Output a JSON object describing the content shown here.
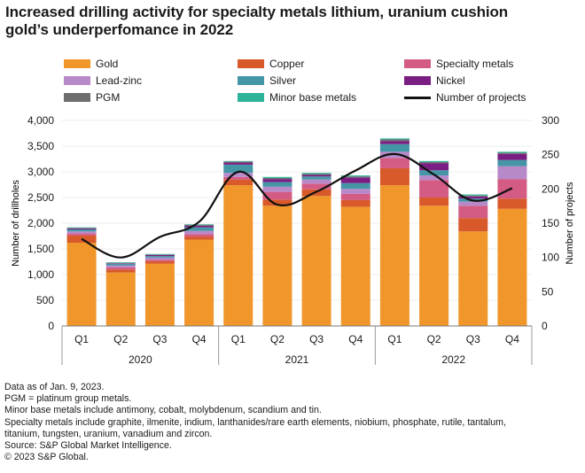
{
  "title": {
    "line1": "Increased drilling activity for specialty metals lithium, uranium cushion",
    "line2": "gold’s underperfomance in 2022"
  },
  "legend": [
    {
      "name": "Gold",
      "color": "#F0962A",
      "kind": "box"
    },
    {
      "name": "Copper",
      "color": "#D8592A",
      "kind": "box"
    },
    {
      "name": "Specialty metals",
      "color": "#D35B84",
      "kind": "box"
    },
    {
      "name": "Lead-zinc",
      "color": "#B889C9",
      "kind": "box"
    },
    {
      "name": "Silver",
      "color": "#4496A7",
      "kind": "box"
    },
    {
      "name": "Nickel",
      "color": "#7B1E83",
      "kind": "box"
    },
    {
      "name": "PGM",
      "color": "#6E6E6E",
      "kind": "box"
    },
    {
      "name": "Minor base metals",
      "color": "#2DB39A",
      "kind": "box"
    },
    {
      "name": "Number of projects",
      "color": "#111111",
      "kind": "line"
    }
  ],
  "chart_data": {
    "type": "bar",
    "stacked": true,
    "categories": [
      "Q1",
      "Q2",
      "Q3",
      "Q4",
      "Q1",
      "Q2",
      "Q3",
      "Q4",
      "Q1",
      "Q2",
      "Q3",
      "Q4"
    ],
    "years": [
      {
        "label": "2020",
        "from": 0,
        "to": 3
      },
      {
        "label": "2021",
        "from": 4,
        "to": 7
      },
      {
        "label": "2022",
        "from": 8,
        "to": 11
      }
    ],
    "ylabel": "Number of drillholes",
    "ylabel_right": "Number of projects",
    "ylim": [
      0,
      4000
    ],
    "yticks": [
      "0",
      "500",
      "1,000",
      "1,500",
      "2,000",
      "2,500",
      "3,000",
      "3,500",
      "4,000"
    ],
    "yticks_right": [
      "0",
      "50",
      "100",
      "150",
      "200",
      "250",
      "300"
    ],
    "ylim_right": [
      0,
      300
    ],
    "series": [
      {
        "name": "Gold",
        "color": "#F0962A",
        "values": [
          1620,
          1040,
          1210,
          1680,
          2740,
          2340,
          2530,
          2320,
          2740,
          2340,
          1840,
          2280
        ]
      },
      {
        "name": "Copper",
        "color": "#D8592A",
        "values": [
          140,
          60,
          50,
          60,
          110,
          120,
          130,
          130,
          330,
          160,
          260,
          200
        ]
      },
      {
        "name": "Specialty metals",
        "color": "#D35B84",
        "values": [
          40,
          40,
          30,
          50,
          50,
          150,
          110,
          120,
          200,
          340,
          240,
          380
        ]
      },
      {
        "name": "Lead-zinc",
        "color": "#B889C9",
        "values": [
          40,
          40,
          40,
          60,
          80,
          100,
          80,
          100,
          120,
          90,
          80,
          250
        ]
      },
      {
        "name": "Silver",
        "color": "#4496A7",
        "values": [
          40,
          30,
          30,
          70,
          160,
          90,
          60,
          110,
          150,
          100,
          60,
          120
        ]
      },
      {
        "name": "Nickel",
        "color": "#7B1E83",
        "values": [
          20,
          10,
          20,
          30,
          40,
          60,
          30,
          110,
          60,
          140,
          40,
          120
        ]
      },
      {
        "name": "PGM",
        "color": "#6E6E6E",
        "values": [
          10,
          10,
          10,
          20,
          20,
          20,
          20,
          20,
          30,
          20,
          20,
          20
        ]
      },
      {
        "name": "Minor base metals",
        "color": "#2DB39A",
        "values": [
          10,
          10,
          10,
          10,
          10,
          20,
          20,
          20,
          20,
          20,
          20,
          20
        ]
      }
    ],
    "line": {
      "name": "Number of projects",
      "axis": "right",
      "values": [
        127,
        100,
        130,
        152,
        225,
        177,
        196,
        227,
        251,
        221,
        183,
        201
      ]
    }
  },
  "notes": [
    "Data as of Jan. 9, 2023.",
    "PGM = platinum group metals.",
    "Minor base metals include antimony, cobalt, molybdenum, scandium and tin.",
    "Specialty metals include graphite, ilmenite, indium, lanthanides/rare earth elements, niobium, phosphate, rutile, tantalum,",
    "titanium, tungsten, uranium, vanadium and zircon.",
    "Source: S&P Global Market Intelligence.",
    "© 2023 S&P Global."
  ]
}
